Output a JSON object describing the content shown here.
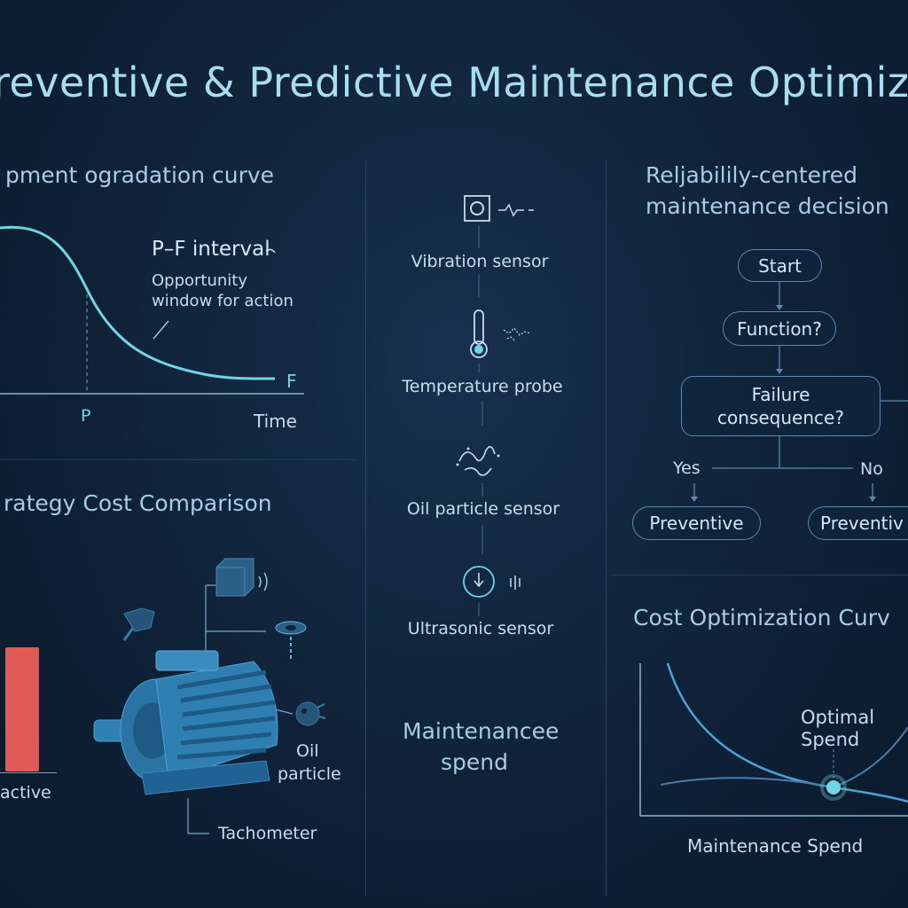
{
  "title": "reventive & Predictive Maintenance Optimiz",
  "degradation": {
    "title": "pment ogradation curve",
    "pf_interval": "P–F interval",
    "opportunity_line1": "Opportunity",
    "opportunity_line2": "window for action",
    "p_label": "P",
    "f_label": "F",
    "x_label": "Time"
  },
  "strategy": {
    "title": "rategy Cost Comparison",
    "bar_label": "active",
    "bar_color": "#e05a57",
    "motor_labels": {
      "oil": "Oil",
      "particle": "particle",
      "tachometer": "Tachometer"
    }
  },
  "sensors": {
    "items": [
      {
        "label": "Vibration sensor",
        "icon": "vibration-sensor-icon"
      },
      {
        "label": "Temperature probe",
        "icon": "thermometer-icon"
      },
      {
        "label": "Oil particle sensor",
        "icon": "oil-particle-icon"
      },
      {
        "label": "Ultrasonic sensor",
        "icon": "ultrasonic-sensor-icon"
      }
    ],
    "spend_line1": "Maintenancee",
    "spend_line2": "spend"
  },
  "rcm": {
    "title_line1": "Reljabilily-centered",
    "title_line2": "maintenance decision",
    "start": "Start",
    "function": "Function?",
    "failure_line1": "Failure",
    "failure_line2": "consequence?",
    "yes": "Yes",
    "no": "No",
    "left_outcome": "Preventive",
    "right_outcome": "Preventiv"
  },
  "cost_opt": {
    "title": "Cost Optimization Curv",
    "optimal_line1": "Optimal",
    "optimal_line2": "Spend",
    "x_label": "Maintenance Spend"
  },
  "colors": {
    "accent_cyan": "#6fd6e4",
    "curve_blue": "#4aa3d8",
    "motor_blue": "#2f7fb0"
  }
}
